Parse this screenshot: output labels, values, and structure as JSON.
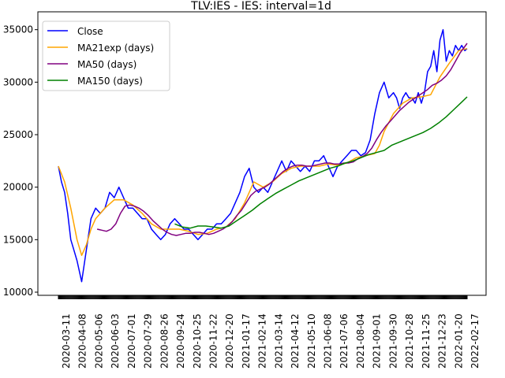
{
  "chart_data": {
    "type": "line",
    "title": "TLV:IES - IES: interval=1d",
    "xlabel": "",
    "ylabel": "",
    "x_tick_labels": [
      "2020-03-11",
      "2020-04-08",
      "2020-05-06",
      "2020-06-03",
      "2020-07-01",
      "2020-07-29",
      "2020-08-26",
      "2020-09-24",
      "2020-10-25",
      "2020-11-22",
      "2020-12-20",
      "2021-01-17",
      "2021-02-14",
      "2021-03-14",
      "2021-04-12",
      "2021-05-10",
      "2021-06-08",
      "2021-07-06",
      "2021-08-04",
      "2021-09-01",
      "2021-09-30",
      "2021-10-28",
      "2021-11-25",
      "2021-12-23",
      "2022-01-20",
      "2022-02-17"
    ],
    "y_tick_labels": [
      "10000",
      "15000",
      "20000",
      "25000",
      "30000",
      "35000"
    ],
    "ylim": [
      9700,
      36700
    ],
    "grid": false,
    "legend_position": "upper left",
    "series": [
      {
        "name": "Close",
        "color": "#0000ff",
        "x_index": [
          0,
          4,
          8,
          12,
          16,
          20,
          24,
          30,
          36,
          42,
          48,
          54,
          60,
          66,
          72,
          78,
          84,
          90,
          96,
          102,
          108,
          114,
          120,
          126,
          132,
          138,
          144,
          150,
          156,
          162,
          168,
          174,
          180,
          186,
          192,
          198,
          204,
          210,
          216,
          222,
          228,
          234,
          240,
          246,
          252,
          258,
          264,
          270,
          276,
          282,
          288,
          294,
          300,
          306,
          312,
          318,
          324,
          330,
          336,
          342,
          348,
          354,
          360,
          366,
          372,
          378,
          384,
          390,
          396,
          402,
          408,
          414,
          420,
          426,
          432,
          436,
          440,
          444,
          448,
          452,
          456,
          460,
          464,
          468,
          472,
          476,
          480,
          484,
          488,
          492,
          496,
          500,
          504,
          508,
          512,
          516,
          520,
          524,
          527
        ],
        "values": [
          22000,
          20500,
          19500,
          17500,
          15000,
          14000,
          13000,
          11000,
          14000,
          17000,
          18000,
          17500,
          18000,
          19500,
          19000,
          20000,
          19000,
          18000,
          18000,
          17500,
          17000,
          17000,
          16000,
          15500,
          15000,
          15500,
          16500,
          17000,
          16500,
          16000,
          16000,
          15500,
          15000,
          15500,
          16000,
          16000,
          16500,
          16500,
          17000,
          17500,
          18500,
          19500,
          21000,
          21800,
          20000,
          19500,
          20000,
          19500,
          20500,
          21500,
          22500,
          21500,
          22500,
          22000,
          21500,
          22000,
          21500,
          22500,
          22500,
          23000,
          22000,
          21000,
          22000,
          22500,
          23000,
          23500,
          23500,
          23000,
          23300,
          24500,
          27000,
          29000,
          30000,
          28500,
          29000,
          28500,
          27500,
          28500,
          29000,
          28500,
          28500,
          28000,
          29000,
          28000,
          29000,
          31000,
          31500,
          33000,
          31000,
          34000,
          35000,
          32000,
          33000,
          32500,
          33500,
          33000,
          33500,
          33000,
          33200
        ]
      },
      {
        "name": "MA21exp (days)",
        "color": "#ffa500",
        "x_index": [
          0,
          8,
          16,
          24,
          30,
          36,
          42,
          48,
          60,
          72,
          84,
          96,
          108,
          120,
          132,
          144,
          156,
          168,
          180,
          192,
          204,
          216,
          228,
          240,
          252,
          264,
          276,
          288,
          300,
          312,
          324,
          336,
          348,
          360,
          372,
          384,
          396,
          408,
          414,
          420,
          432,
          444,
          456,
          468,
          480,
          492,
          504,
          516,
          527
        ],
        "values": [
          22000,
          20500,
          18000,
          15000,
          13500,
          14500,
          16000,
          17000,
          18000,
          18800,
          18800,
          18300,
          17500,
          16500,
          16000,
          16000,
          16000,
          15800,
          15500,
          15600,
          16000,
          16200,
          17000,
          18500,
          20500,
          20000,
          20500,
          21300,
          21800,
          22000,
          22000,
          22000,
          22200,
          22100,
          22300,
          22800,
          23000,
          23200,
          24000,
          25300,
          27000,
          28000,
          28500,
          28600,
          28800,
          30500,
          31800,
          33000,
          33200
        ]
      },
      {
        "name": "MA50 (days)",
        "color": "#800080",
        "x_index": [
          50,
          56,
          62,
          68,
          74,
          80,
          86,
          92,
          98,
          104,
          110,
          116,
          122,
          128,
          134,
          140,
          146,
          152,
          158,
          164,
          170,
          176,
          182,
          188,
          194,
          200,
          206,
          212,
          218,
          224,
          230,
          236,
          242,
          248,
          254,
          260,
          266,
          272,
          278,
          284,
          290,
          296,
          302,
          308,
          314,
          320,
          326,
          332,
          338,
          344,
          350,
          356,
          362,
          368,
          374,
          380,
          386,
          392,
          398,
          404,
          410,
          416,
          422,
          428,
          434,
          440,
          446,
          452,
          458,
          464,
          470,
          476,
          482,
          488,
          494,
          500,
          506,
          512,
          518,
          524,
          527
        ],
        "values": [
          16000,
          15900,
          15800,
          16000,
          16500,
          17500,
          18200,
          18300,
          18200,
          18000,
          17700,
          17300,
          16800,
          16400,
          16000,
          15700,
          15500,
          15400,
          15500,
          15600,
          15600,
          15700,
          15700,
          15600,
          15500,
          15600,
          15800,
          16000,
          16300,
          16700,
          17300,
          17800,
          18500,
          19200,
          19600,
          19800,
          20000,
          20300,
          20700,
          21100,
          21500,
          21800,
          22000,
          22100,
          22100,
          22000,
          22000,
          22100,
          22200,
          22300,
          22300,
          22200,
          22200,
          22300,
          22300,
          22400,
          22700,
          22900,
          23200,
          23700,
          24500,
          25200,
          25800,
          26300,
          26800,
          27300,
          27700,
          28100,
          28400,
          28700,
          29000,
          29300,
          29700,
          29900,
          30200,
          30600,
          31200,
          32000,
          32800,
          33400,
          33700
        ]
      },
      {
        "name": "MA150 (days)",
        "color": "#008000",
        "x_index": [
          150,
          160,
          170,
          180,
          190,
          200,
          210,
          220,
          230,
          240,
          250,
          260,
          270,
          280,
          290,
          300,
          310,
          320,
          330,
          340,
          350,
          360,
          370,
          380,
          390,
          400,
          410,
          420,
          430,
          440,
          450,
          460,
          470,
          480,
          490,
          500,
          510,
          520,
          527
        ],
        "values": [
          16500,
          16200,
          16100,
          16300,
          16300,
          16200,
          16100,
          16300,
          16800,
          17300,
          17800,
          18400,
          18900,
          19400,
          19800,
          20200,
          20600,
          20900,
          21200,
          21500,
          21800,
          22000,
          22300,
          22500,
          22800,
          23100,
          23300,
          23500,
          24000,
          24300,
          24600,
          24900,
          25200,
          25600,
          26100,
          26700,
          27400,
          28100,
          28600
        ]
      }
    ]
  }
}
